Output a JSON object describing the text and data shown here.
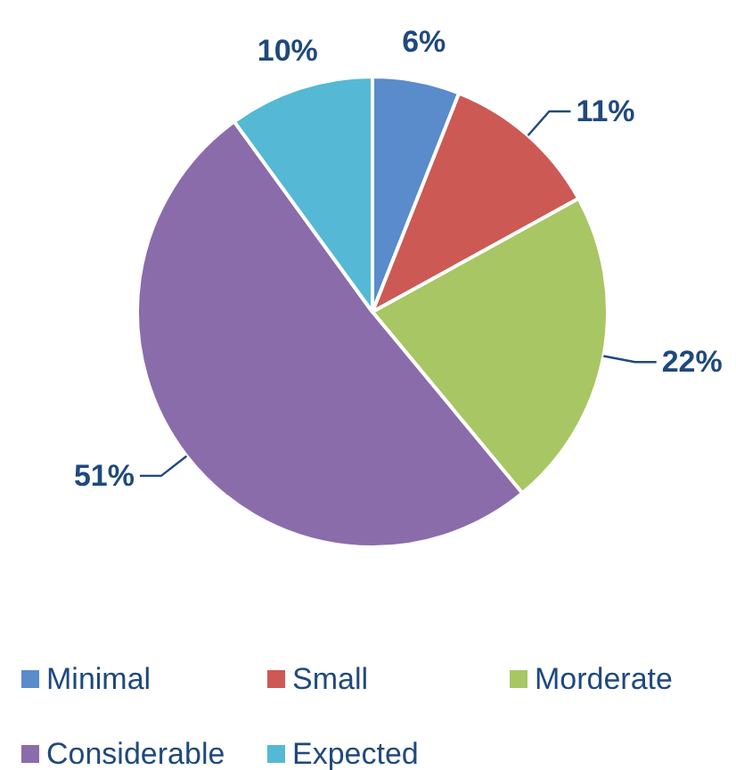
{
  "chart_data": {
    "type": "pie",
    "categories": [
      "Minimal",
      "Small",
      "Morderate",
      "Considerable",
      "Expected"
    ],
    "values": [
      6,
      11,
      22,
      51,
      10
    ],
    "colors": [
      "#5a8bcb",
      "#cd5954",
      "#a8c663",
      "#8a6cab",
      "#55b8d5"
    ],
    "value_labels": [
      "6%",
      "11%",
      "22%",
      "51%",
      "10%"
    ],
    "legend": "bottom"
  }
}
